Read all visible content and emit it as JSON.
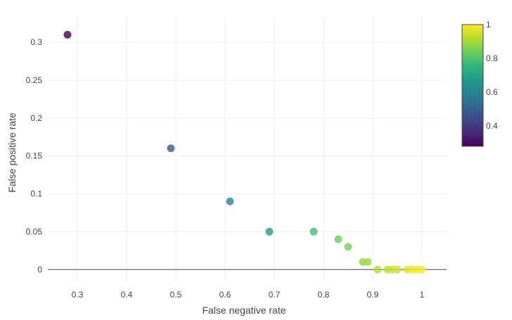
{
  "chart_data": {
    "type": "scatter",
    "xlabel": "False negative rate",
    "ylabel": "False positive rate",
    "xlim": [
      0.24,
      1.05
    ],
    "ylim": [
      -0.0155,
      0.3335
    ],
    "xticks": [
      0.3,
      0.4,
      0.5,
      0.6,
      0.7,
      0.8,
      0.9,
      1
    ],
    "xtick_labels": [
      "0.3",
      "0.4",
      "0.5",
      "0.6",
      "0.7",
      "0.8",
      "0.9",
      "1"
    ],
    "yticks": [
      0,
      0.05,
      0.1,
      0.15,
      0.2,
      0.25,
      0.3
    ],
    "ytick_labels": [
      "0",
      "0.05",
      "0.1",
      "0.15",
      "0.2",
      "0.25",
      "0.3"
    ],
    "grid": true,
    "zero_line": true,
    "marker_opacity": 0.8,
    "colorscale": "viridis",
    "colorbar": {
      "range": [
        0.28,
        1.0
      ],
      "ticks": [
        0.4,
        0.6,
        0.8,
        1
      ],
      "tick_labels": [
        "0.4",
        "0.6",
        "0.8",
        "1"
      ],
      "placement": "right"
    },
    "points": [
      {
        "x": 0.28,
        "y": 0.31,
        "color": 0.28
      },
      {
        "x": 0.49,
        "y": 0.16,
        "color": 0.49
      },
      {
        "x": 0.61,
        "y": 0.09,
        "color": 0.61
      },
      {
        "x": 0.69,
        "y": 0.05,
        "color": 0.69
      },
      {
        "x": 0.78,
        "y": 0.05,
        "color": 0.78
      },
      {
        "x": 0.83,
        "y": 0.04,
        "color": 0.83
      },
      {
        "x": 0.85,
        "y": 0.03,
        "color": 0.85
      },
      {
        "x": 0.88,
        "y": 0.01,
        "color": 0.88
      },
      {
        "x": 0.89,
        "y": 0.01,
        "color": 0.89
      },
      {
        "x": 0.91,
        "y": 0.0,
        "color": 0.91
      },
      {
        "x": 0.93,
        "y": 0.0,
        "color": 0.93
      },
      {
        "x": 0.94,
        "y": 0.0,
        "color": 0.94
      },
      {
        "x": 0.95,
        "y": 0.0,
        "color": 0.95
      },
      {
        "x": 0.97,
        "y": 0.0,
        "color": 0.97
      },
      {
        "x": 0.98,
        "y": 0.0,
        "color": 0.98
      },
      {
        "x": 0.99,
        "y": 0.0,
        "color": 0.99
      },
      {
        "x": 1.0,
        "y": 0.0,
        "color": 1.0
      }
    ]
  }
}
